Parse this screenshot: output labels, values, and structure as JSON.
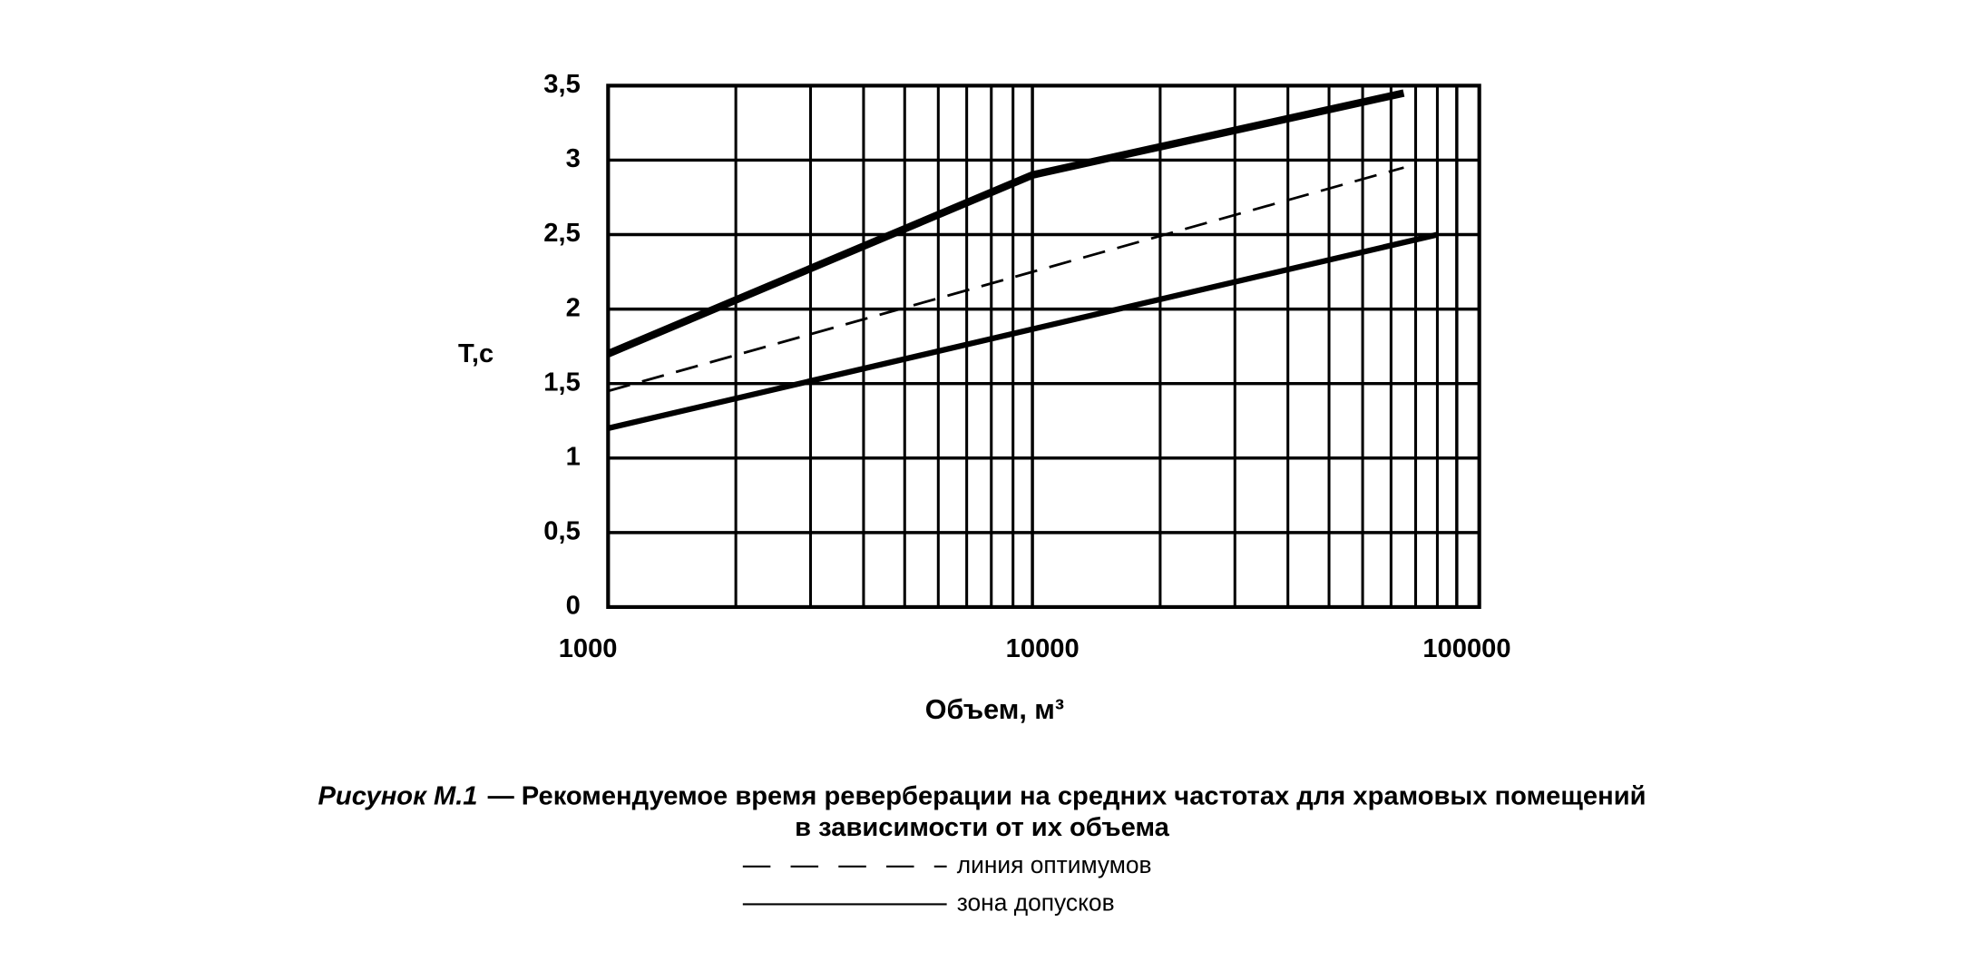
{
  "chart_data": {
    "type": "line",
    "ylabel": "Т,с",
    "xlabel": "Объем, м³",
    "caption": {
      "label": "Рисунок М.1",
      "lines": [
        "— Рекомендуемое время реверберации на средних частотах для храмовых помещений",
        "в зависимости от их объема"
      ]
    },
    "xscale": "log",
    "xlim": [
      1000,
      113000
    ],
    "xticks": [
      1000,
      10000,
      100000
    ],
    "ylim": [
      0,
      3.5
    ],
    "yticks": [
      0,
      {
        "value": 0.5,
        "label": "0,5"
      },
      1,
      {
        "value": 1.5,
        "label": "1,5"
      },
      2,
      {
        "value": 2.5,
        "label": "2,5"
      },
      3,
      {
        "value": 3.5,
        "label": "3,5"
      }
    ],
    "grid": true,
    "minor_grid": true,
    "series": [
      {
        "name": "линия оптимумов",
        "color": "#000000",
        "dash": true,
        "x": [
          1000,
          75000
        ],
        "values": [
          1.45,
          2.95
        ]
      },
      {
        "name": "зона допусков",
        "color": "#000000",
        "lower": {
          "x": [
            1000,
            90000
          ],
          "values": [
            1.2,
            2.5
          ]
        },
        "upper": {
          "x": [
            1000,
            10000,
            75000
          ],
          "values": [
            1.7,
            2.9,
            3.45
          ]
        }
      }
    ]
  }
}
